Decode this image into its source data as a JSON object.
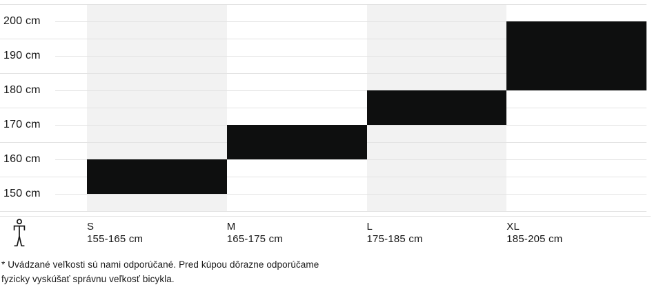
{
  "chart_data": {
    "type": "bar",
    "title": "",
    "description": "Bike size guide: recommended rider height ranges per frame size",
    "unit": "cm",
    "y_axis": {
      "min": 145,
      "max": 205,
      "grid_step": 5,
      "ticks": [
        {
          "value": 200,
          "label": "200 cm"
        },
        {
          "value": 190,
          "label": "190 cm"
        },
        {
          "value": 180,
          "label": "180 cm"
        },
        {
          "value": 170,
          "label": "170 cm"
        },
        {
          "value": 160,
          "label": "160 cm"
        },
        {
          "value": 150,
          "label": "150 cm"
        }
      ]
    },
    "sizes": [
      {
        "label": "S",
        "range_label": "155-165 cm",
        "min_cm": 155,
        "max_cm": 165,
        "band_cm": [
          150,
          160
        ],
        "shaded_column": true
      },
      {
        "label": "M",
        "range_label": "165-175 cm",
        "min_cm": 165,
        "max_cm": 175,
        "band_cm": [
          160,
          170
        ],
        "shaded_column": false
      },
      {
        "label": "L",
        "range_label": "175-185 cm",
        "min_cm": 175,
        "max_cm": 185,
        "band_cm": [
          170,
          180
        ],
        "shaded_column": true
      },
      {
        "label": "XL",
        "range_label": "185-205 cm",
        "min_cm": 185,
        "max_cm": 205,
        "band_cm": [
          180,
          200
        ],
        "shaded_column": false
      }
    ],
    "legend_position": "none",
    "grid": true
  },
  "colors": {
    "bar": "#0e0f0f",
    "column_shade": "#f2f2f2",
    "gridline": "#e3e3e3",
    "axis_line": "#e3e3e3",
    "text": "#161616"
  },
  "icons": {
    "person": "rider-height-icon"
  },
  "footnote": {
    "lines": [
      "* Uvádzané veľkosti sú nami odporúčané. Pred kúpou dôrazne odporúčame",
      "fyzicky vyskúšať správnu veľkosť bicykla."
    ]
  }
}
